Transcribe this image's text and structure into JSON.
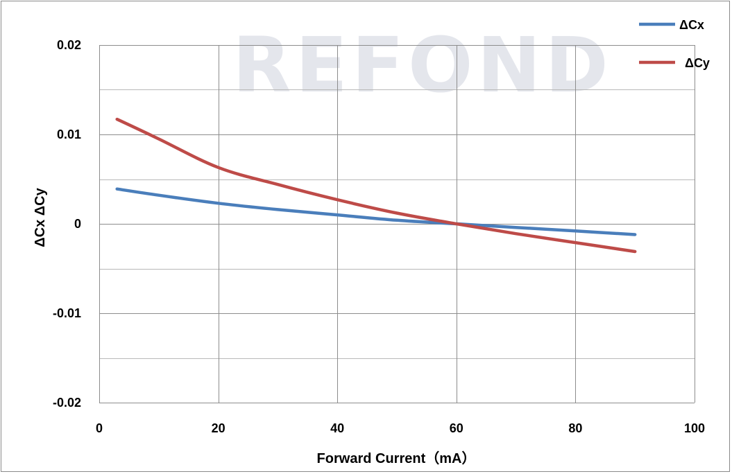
{
  "watermark": "REFOND",
  "chart_data": {
    "type": "line",
    "xlabel": "Forward Current（mA）",
    "ylabel": "ΔCx  ΔCy",
    "xlim": [
      0,
      100
    ],
    "ylim": [
      -0.02,
      0.02
    ],
    "x_ticks": [
      0,
      20,
      40,
      60,
      80,
      100
    ],
    "x_tick_labels": [
      "0",
      "20",
      "40",
      "60",
      "80",
      "100"
    ],
    "y_ticks": [
      0.02,
      0.01,
      0,
      -0.01,
      -0.02
    ],
    "y_tick_labels": [
      "0.02",
      "0.01",
      "0",
      "-0.01",
      "-0.02"
    ],
    "y_minor_step": 0.005,
    "grid": true,
    "legend_position": "top-right",
    "series": [
      {
        "name": "ΔCx",
        "color": "#4a7ebb",
        "x": [
          3,
          10,
          20,
          30,
          40,
          50,
          60,
          70,
          80,
          90
        ],
        "y": [
          0.0039,
          0.0032,
          0.0023,
          0.0016,
          0.001,
          0.0004,
          0,
          -0.0004,
          -0.0008,
          -0.0012
        ]
      },
      {
        "name": "ΔCy",
        "color": "#be4b48",
        "x": [
          3,
          10,
          20,
          30,
          40,
          50,
          60,
          70,
          80,
          90
        ],
        "y": [
          0.0117,
          0.0095,
          0.0063,
          0.0044,
          0.0027,
          0.0012,
          0,
          -0.0011,
          -0.0021,
          -0.0031
        ]
      }
    ]
  }
}
